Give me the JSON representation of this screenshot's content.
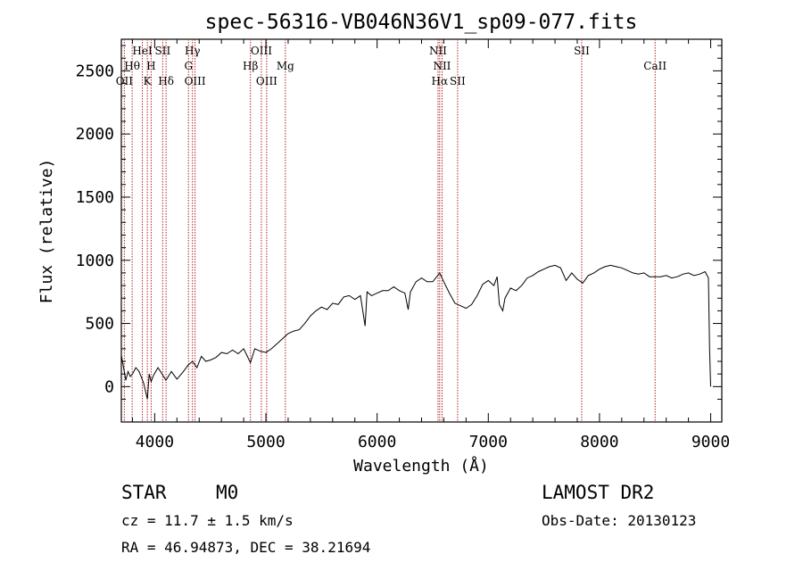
{
  "chart_data": {
    "type": "line",
    "title": "spec-56316-VB046N36V1_sp09-077.fits",
    "xlabel": "Wavelength (Å)",
    "ylabel": "Flux (relative)",
    "xlim": [
      3700,
      9100
    ],
    "ylim": [
      -280,
      2750
    ],
    "xticks": [
      4000,
      5000,
      6000,
      7000,
      8000,
      9000
    ],
    "yticks": [
      0,
      500,
      1000,
      1500,
      2000,
      2500
    ],
    "grid": false,
    "series": [
      {
        "x": [
          3700,
          3720,
          3740,
          3760,
          3780,
          3800,
          3830,
          3860,
          3900,
          3934,
          3950,
          3968,
          3990,
          4030,
          4080,
          4101,
          4150,
          4200,
          4250,
          4300,
          4340,
          4380,
          4420,
          4460,
          4500,
          4550,
          4600,
          4650,
          4700,
          4750,
          4800,
          4861,
          4900,
          4950,
          5000,
          5050,
          5100,
          5150,
          5200,
          5250,
          5300,
          5350,
          5400,
          5450,
          5500,
          5550,
          5600,
          5650,
          5700,
          5750,
          5800,
          5850,
          5892,
          5910,
          5950,
          6000,
          6050,
          6100,
          6150,
          6200,
          6250,
          6280,
          6300,
          6350,
          6400,
          6450,
          6500,
          6563,
          6600,
          6650,
          6700,
          6750,
          6800,
          6850,
          6900,
          6950,
          7000,
          7050,
          7080,
          7100,
          7130,
          7150,
          7200,
          7250,
          7300,
          7350,
          7400,
          7450,
          7500,
          7550,
          7600,
          7650,
          7700,
          7750,
          7800,
          7850,
          7900,
          7950,
          8000,
          8050,
          8100,
          8150,
          8200,
          8250,
          8300,
          8350,
          8400,
          8450,
          8500,
          8550,
          8600,
          8650,
          8700,
          8750,
          8800,
          8850,
          8900,
          8950,
          8980,
          8990,
          9000
        ],
        "y": [
          250,
          150,
          50,
          120,
          80,
          100,
          150,
          120,
          30,
          -100,
          100,
          40,
          90,
          150,
          80,
          50,
          120,
          60,
          110,
          170,
          200,
          150,
          240,
          200,
          210,
          230,
          270,
          260,
          290,
          260,
          300,
          190,
          300,
          280,
          270,
          300,
          340,
          380,
          420,
          440,
          450,
          500,
          560,
          600,
          630,
          610,
          660,
          650,
          710,
          720,
          690,
          720,
          480,
          750,
          720,
          740,
          760,
          760,
          790,
          760,
          740,
          610,
          750,
          830,
          860,
          830,
          830,
          900,
          830,
          740,
          660,
          640,
          620,
          650,
          720,
          810,
          840,
          800,
          870,
          650,
          600,
          700,
          780,
          760,
          800,
          860,
          880,
          910,
          930,
          950,
          960,
          940,
          840,
          900,
          850,
          820,
          880,
          900,
          930,
          950,
          960,
          950,
          940,
          920,
          900,
          890,
          900,
          870,
          870,
          870,
          880,
          860,
          870,
          890,
          900,
          880,
          890,
          910,
          860,
          300,
          0
        ]
      }
    ],
    "spectral_lines": [
      {
        "label": "OII",
        "wavelength": 3727,
        "row": 2
      },
      {
        "label": "Hθ",
        "wavelength": 3797,
        "row": 1
      },
      {
        "label": "HeI",
        "wavelength": 3889,
        "row": 0
      },
      {
        "label": "K",
        "wavelength": 3934,
        "row": 2
      },
      {
        "label": "H",
        "wavelength": 3968,
        "row": 1
      },
      {
        "label": "SII",
        "wavelength": 4072,
        "row": 0
      },
      {
        "label": "Hδ",
        "wavelength": 4102,
        "row": 2
      },
      {
        "label": "Hγ",
        "wavelength": 4340,
        "row": 0
      },
      {
        "label": "G",
        "wavelength": 4304,
        "row": 1
      },
      {
        "label": "OIII",
        "wavelength": 4363,
        "row": 2
      },
      {
        "label": "Hβ",
        "wavelength": 4861,
        "row": 1
      },
      {
        "label": "OIII",
        "wavelength": 4959,
        "row": 0
      },
      {
        "label": "OIII",
        "wavelength": 5007,
        "row": 2
      },
      {
        "label": "Mg",
        "wavelength": 5175,
        "row": 1
      },
      {
        "label": "NII",
        "wavelength": 6548,
        "row": 0
      },
      {
        "label": "NII",
        "wavelength": 6584,
        "row": 1
      },
      {
        "label": "Hα",
        "wavelength": 6563,
        "row": 2
      },
      {
        "label": "SII",
        "wavelength": 6724,
        "row": 2
      },
      {
        "label": "SII",
        "wavelength": 7840,
        "row": 0
      },
      {
        "label": "CaII",
        "wavelength": 8500,
        "row": 1
      }
    ],
    "line_color": "#000000",
    "marker_color": "#b22222"
  },
  "info": {
    "class_type": "STAR",
    "subclass": "M0",
    "survey": "LAMOST DR2",
    "cz": "cz = 11.7 ± 1.5 km/s",
    "obs_date": "Obs-Date: 20130123",
    "coords": "RA =  46.94873, DEC =  38.21694"
  }
}
